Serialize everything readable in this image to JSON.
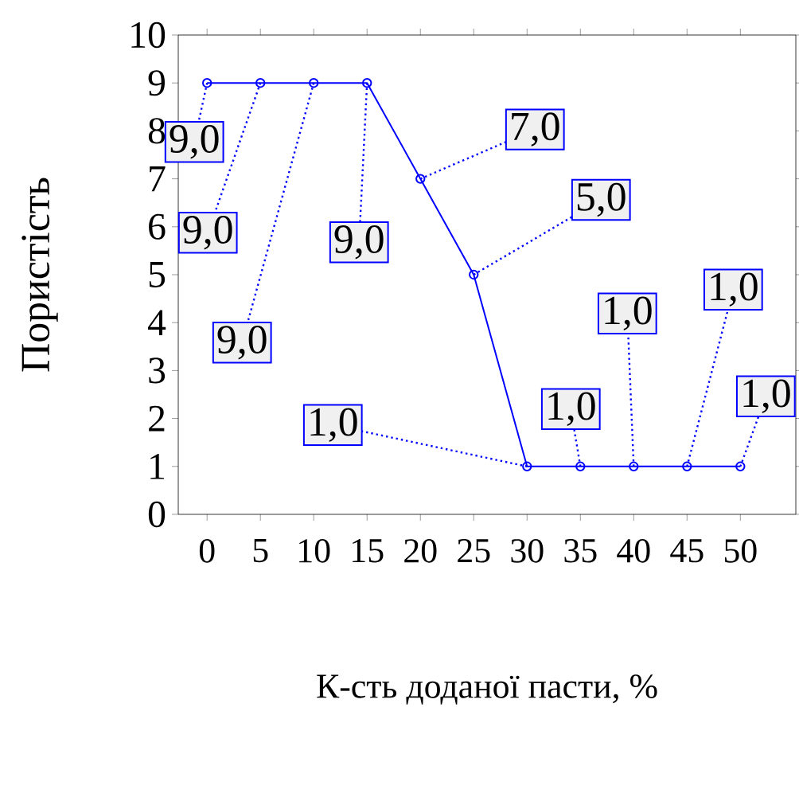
{
  "chart_data": {
    "type": "line",
    "xlabel": "К-сть доданої пасти, %",
    "ylabel": "Пористість",
    "x": [
      0,
      5,
      10,
      15,
      20,
      25,
      30,
      35,
      40,
      45,
      50
    ],
    "series": [
      {
        "color": "#0000ff",
        "values": [
          9,
          9,
          9,
          9,
          7,
          5,
          1,
          1,
          1,
          1,
          1
        ],
        "value_labels": [
          "9,0",
          "9,0",
          "9,0",
          "9,0",
          "7,0",
          "5,0",
          "1,0",
          "1,0",
          "1,0",
          "1,0",
          "1,0"
        ]
      }
    ],
    "xlim": [
      -2.7,
      55.2
    ],
    "ylim": [
      0,
      10
    ],
    "xticks": [
      0,
      5,
      10,
      15,
      20,
      25,
      30,
      35,
      40,
      45,
      50
    ],
    "yticks": [
      0,
      1,
      2,
      3,
      4,
      5,
      6,
      7,
      8,
      9,
      10
    ],
    "marker": "circle",
    "line_style": "solid",
    "grid": false
  }
}
